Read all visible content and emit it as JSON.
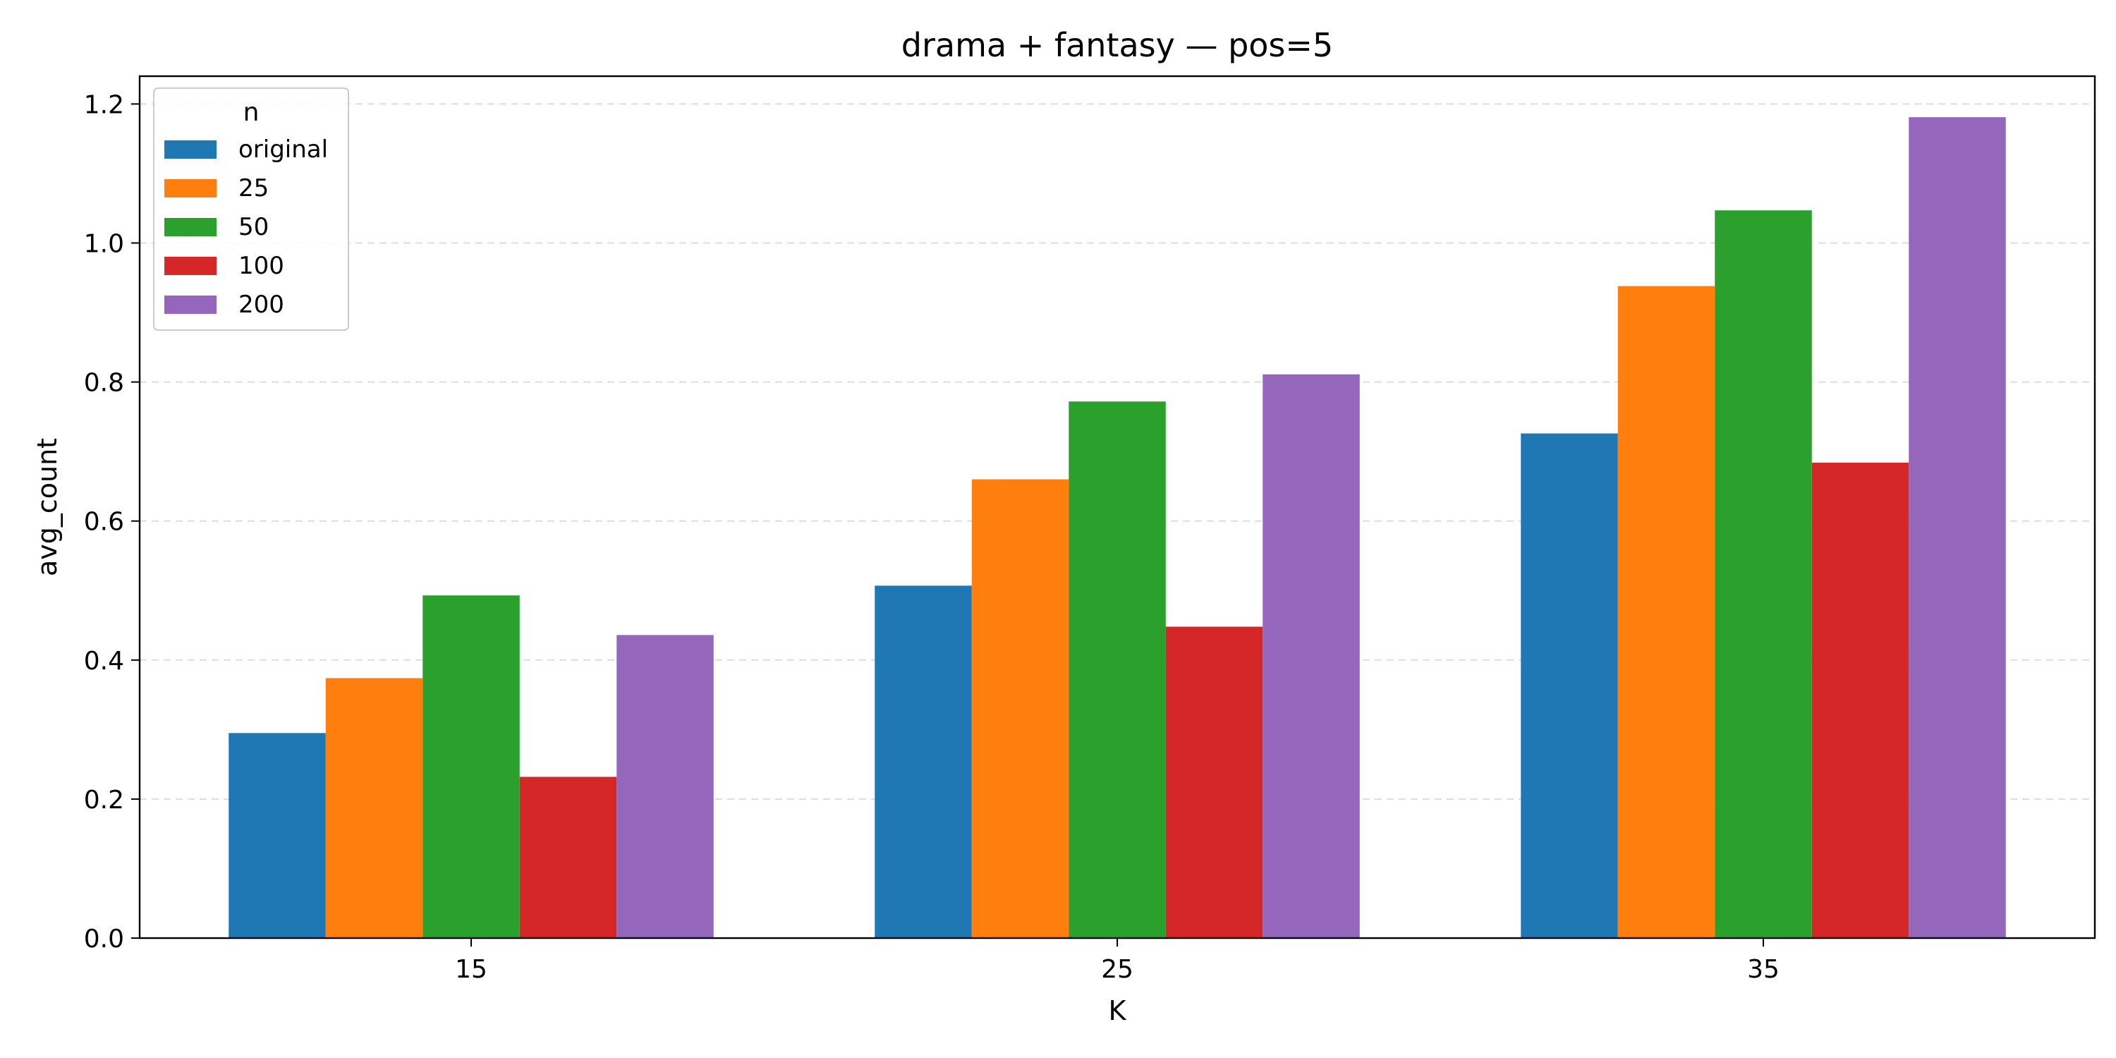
{
  "chart_data": {
    "type": "bar",
    "title": "drama + fantasy — pos=5",
    "xlabel": "K",
    "ylabel": "avg_count",
    "categories": [
      "15",
      "25",
      "35"
    ],
    "ylim": [
      0,
      1.24
    ],
    "yticks": [
      0.0,
      0.2,
      0.4,
      0.6,
      0.8,
      1.0,
      1.2
    ],
    "ytick_labels": [
      "0.0",
      "0.2",
      "0.4",
      "0.6",
      "0.8",
      "1.0",
      "1.2"
    ],
    "grid": "y-dashed",
    "legend": {
      "title": "n",
      "position": "top-left"
    },
    "series": [
      {
        "name": "original",
        "color": "#1f77b4",
        "values": [
          0.295,
          0.507,
          0.726
        ]
      },
      {
        "name": "25",
        "color": "#ff7f0e",
        "values": [
          0.374,
          0.66,
          0.938
        ]
      },
      {
        "name": "50",
        "color": "#2ca02c",
        "values": [
          0.493,
          0.772,
          1.047
        ]
      },
      {
        "name": "100",
        "color": "#d62728",
        "values": [
          0.232,
          0.448,
          0.684
        ]
      },
      {
        "name": "200",
        "color": "#9467bd",
        "values": [
          0.436,
          0.811,
          1.181
        ]
      }
    ]
  }
}
